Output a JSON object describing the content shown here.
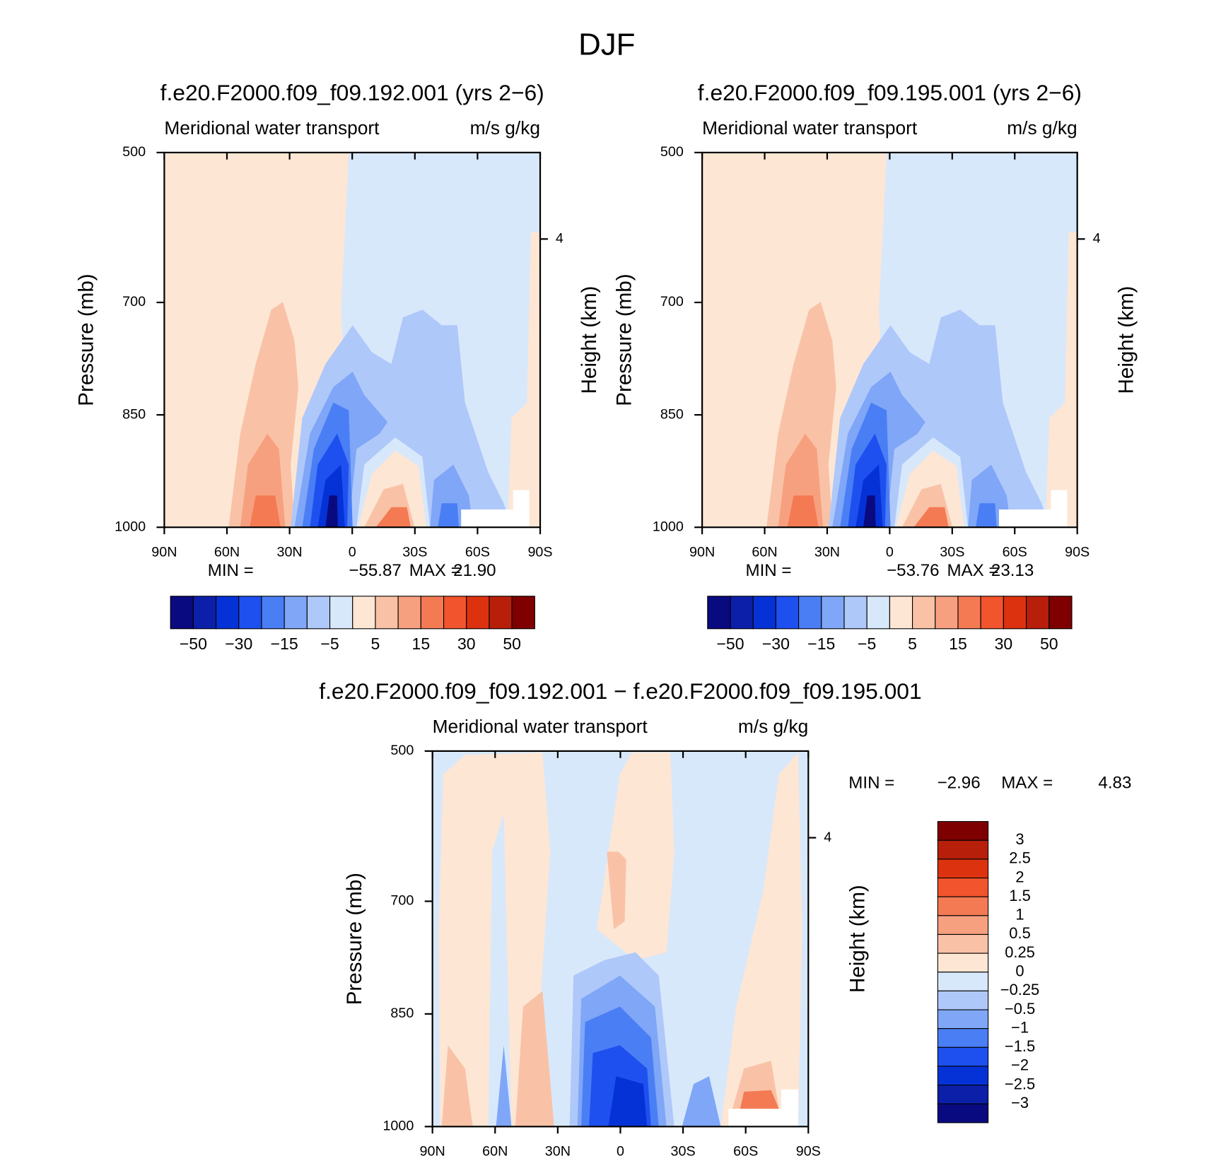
{
  "title": "DJF",
  "chart_data": [
    {
      "type": "contour",
      "title": "f.e20.F2000.f09_f09.192.001 (yrs 2−6)",
      "left_string": "Meridional water transport",
      "right_string": "m/s g/kg",
      "y_label": "Pressure (mb)",
      "y2_label": "Height (km)",
      "xlim": [
        90,
        -90
      ],
      "xticks": [
        {
          "value": 90,
          "label": "90N"
        },
        {
          "value": 60,
          "label": "60N"
        },
        {
          "value": 30,
          "label": "30N"
        },
        0,
        {
          "value": -30,
          "label": "30S"
        },
        {
          "value": -60,
          "label": "60S"
        },
        {
          "value": -90,
          "label": "90S"
        }
      ],
      "ylim": [
        1000,
        500
      ],
      "yticks": [
        500,
        700,
        850,
        1000
      ],
      "y2lim": [
        0,
        5.2
      ],
      "y2ticks": [
        4
      ],
      "min_label": "MIN =",
      "min": {
        "value": -55.87,
        "label": "−55.87"
      },
      "max_label": "MAX =",
      "max": {
        "value": 21.9,
        "label": "21.90"
      },
      "colors": [
        "#0a0a80",
        "#0b1fa8",
        "#0532d6",
        "#1e50f0",
        "#4a7ef5",
        "#7fa6f7",
        "#afc8fa",
        "#d8e8fb",
        "#fde6d4",
        "#f9c2a6",
        "#f7a07f",
        "#f47a54",
        "#f2542e",
        "#dc3210",
        "#b71f0b",
        "#7f0000"
      ],
      "colorbar_ticks": [
        {
          "value": -50,
          "label": "−50"
        },
        {
          "value": -30,
          "label": "−30"
        },
        {
          "value": -15,
          "label": "−15"
        },
        {
          "value": -5,
          "label": "−5"
        },
        5,
        15,
        30,
        50
      ]
    },
    {
      "type": "contour",
      "title": "f.e20.F2000.f09_f09.195.001 (yrs 2−6)",
      "left_string": "Meridional water transport",
      "right_string": "m/s g/kg",
      "y_label": "Pressure (mb)",
      "y2_label": "Height (km)",
      "xlim": [
        90,
        -90
      ],
      "xticks": [
        {
          "value": 90,
          "label": "90N"
        },
        {
          "value": 60,
          "label": "60N"
        },
        {
          "value": 30,
          "label": "30N"
        },
        0,
        {
          "value": -30,
          "label": "30S"
        },
        {
          "value": -60,
          "label": "60S"
        },
        {
          "value": -90,
          "label": "90S"
        }
      ],
      "ylim": [
        1000,
        500
      ],
      "yticks": [
        500,
        700,
        850,
        1000
      ],
      "y2lim": [
        0,
        5.2
      ],
      "y2ticks": [
        4
      ],
      "min_label": "MIN =",
      "min": {
        "value": -53.76,
        "label": "−53.76"
      },
      "max_label": "MAX =",
      "max": {
        "value": 23.13,
        "label": "23.13"
      },
      "colors": [
        "#0a0a80",
        "#0b1fa8",
        "#0532d6",
        "#1e50f0",
        "#4a7ef5",
        "#7fa6f7",
        "#afc8fa",
        "#d8e8fb",
        "#fde6d4",
        "#f9c2a6",
        "#f7a07f",
        "#f47a54",
        "#f2542e",
        "#dc3210",
        "#b71f0b",
        "#7f0000"
      ],
      "colorbar_ticks": [
        {
          "value": -50,
          "label": "−50"
        },
        {
          "value": -30,
          "label": "−30"
        },
        {
          "value": -15,
          "label": "−15"
        },
        {
          "value": -5,
          "label": "−5"
        },
        5,
        15,
        30,
        50
      ]
    },
    {
      "type": "contour",
      "title": "f.e20.F2000.f09_f09.192.001 − f.e20.F2000.f09_f09.195.001",
      "left_string": "Meridional water transport",
      "right_string": "m/s g/kg",
      "y_label": "Pressure (mb)",
      "y2_label": "Height (km)",
      "xlim": [
        90,
        -90
      ],
      "xticks": [
        {
          "value": 90,
          "label": "90N"
        },
        {
          "value": 60,
          "label": "60N"
        },
        {
          "value": 30,
          "label": "30N"
        },
        0,
        {
          "value": -30,
          "label": "30S"
        },
        {
          "value": -60,
          "label": "60S"
        },
        {
          "value": -90,
          "label": "90S"
        }
      ],
      "ylim": [
        1000,
        500
      ],
      "yticks": [
        500,
        700,
        850,
        1000
      ],
      "y2lim": [
        0,
        5.2
      ],
      "y2ticks": [
        4
      ],
      "min_label": "MIN =",
      "min": {
        "value": -2.96,
        "label": "−2.96"
      },
      "max_label": "MAX =",
      "max": {
        "value": 4.83,
        "label": "4.83"
      },
      "colors": [
        "#0a0a80",
        "#0b1fa8",
        "#0532d6",
        "#1e50f0",
        "#4a7ef5",
        "#7fa6f7",
        "#afc8fa",
        "#d8e8fb",
        "#fde6d4",
        "#f9c2a6",
        "#f7a07f",
        "#f47a54",
        "#f2542e",
        "#dc3210",
        "#b71f0b",
        "#7f0000"
      ],
      "colorbar_ticks": [
        3,
        2.5,
        2,
        1.5,
        1,
        0.5,
        0.25,
        0,
        {
          "value": -0.25,
          "label": "−0.25"
        },
        {
          "value": -0.5,
          "label": "−0.5"
        },
        {
          "value": -1,
          "label": "−1"
        },
        {
          "value": -1.5,
          "label": "−1.5"
        },
        {
          "value": -2,
          "label": "−2"
        },
        {
          "value": -2.5,
          "label": "−2.5"
        },
        {
          "value": -3,
          "label": "−3"
        }
      ]
    }
  ]
}
